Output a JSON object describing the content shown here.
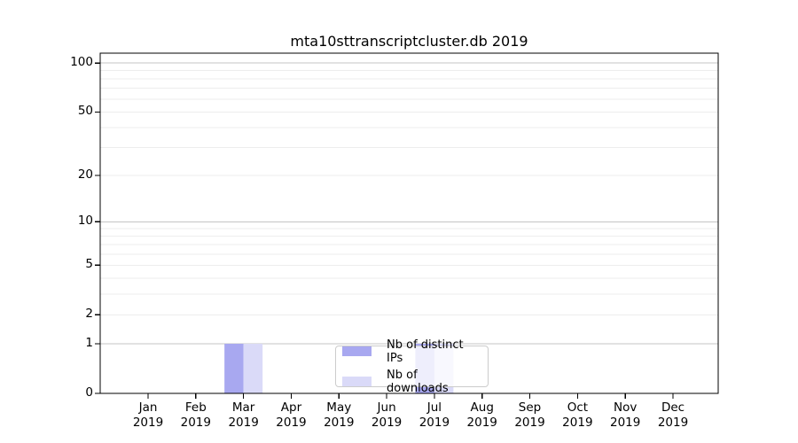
{
  "figure": {
    "background": "#ffffff"
  },
  "chart_data": {
    "type": "bar",
    "title": "mta10sttranscriptcluster.db 2019",
    "x_year": "2019",
    "categories": [
      "Jan",
      "Feb",
      "Mar",
      "Apr",
      "May",
      "Jun",
      "Jul",
      "Aug",
      "Sep",
      "Oct",
      "Nov",
      "Dec"
    ],
    "series": [
      {
        "name": "Nb of distinct IPs",
        "color": "#a8a8f0",
        "values": [
          0,
          0,
          1,
          0,
          0,
          0,
          1,
          0,
          0,
          0,
          0,
          0
        ]
      },
      {
        "name": "Nb of downloads",
        "color": "#dadaf8",
        "values": [
          0,
          0,
          1,
          0,
          0,
          0,
          1,
          0,
          0,
          0,
          0,
          0
        ]
      }
    ],
    "y_scale": "log1p",
    "ylim": [
      0,
      115
    ],
    "y_tick_labels": [
      "0",
      "1",
      "2",
      "5",
      "10",
      "20",
      "50",
      "100"
    ],
    "y_tick_values": [
      0,
      1,
      2,
      5,
      10,
      20,
      50,
      100
    ],
    "y_gridlines_major": [
      1,
      10,
      100
    ],
    "y_gridlines_minor": [
      2,
      3,
      4,
      5,
      6,
      7,
      8,
      9,
      20,
      30,
      40,
      50,
      60,
      70,
      80,
      90
    ],
    "grid": "horizontal-only",
    "legend_position": "inside-bottom-center",
    "colors": {
      "major_grid": "#c4c4c4",
      "minor_grid": "#ededed",
      "spine": "#000000",
      "text": "#000000",
      "legend_border": "#cccccc"
    }
  }
}
